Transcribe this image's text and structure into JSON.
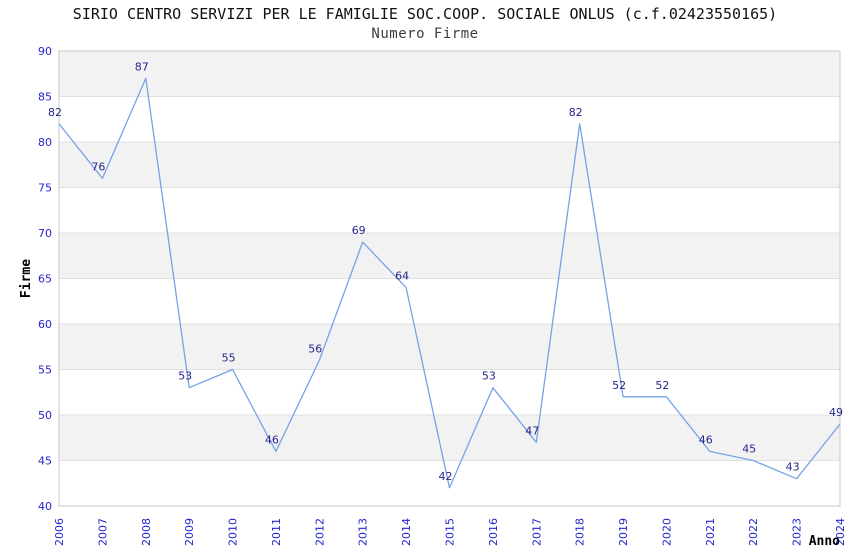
{
  "header": {
    "title": "SIRIO CENTRO SERVIZI PER LE FAMIGLIE SOC.COOP. SOCIALE ONLUS (c.f.02423550165)",
    "subtitle": "Numero Firme"
  },
  "chart_data": {
    "type": "line",
    "title": "SIRIO CENTRO SERVIZI PER LE FAMIGLIE SOC.COOP. SOCIALE ONLUS (c.f.02423550165)",
    "subtitle": "Numero Firme",
    "xlabel": "Anno",
    "ylabel": "Firme",
    "x": [
      2006,
      2007,
      2008,
      2009,
      2010,
      2011,
      2012,
      2013,
      2014,
      2015,
      2016,
      2017,
      2018,
      2019,
      2020,
      2021,
      2022,
      2023,
      2024
    ],
    "values": [
      82,
      76,
      87,
      53,
      55,
      46,
      56,
      69,
      64,
      42,
      53,
      47,
      82,
      52,
      52,
      46,
      45,
      43,
      49
    ],
    "ylim": [
      40,
      90
    ],
    "ytick_step": 5,
    "grid": true,
    "banded_background": true,
    "legend": "none",
    "colors": {
      "line": "#74a3e6",
      "tick_label": "#2525cd",
      "point_label": "#26268c",
      "band": "#f2f2f2",
      "gridline": "#e0e0e0",
      "plot_border": "#c8c8c8",
      "title": "#111111",
      "subtitle": "#3d3d3d",
      "axis_label": "#000000",
      "background": "#ffffff"
    }
  }
}
